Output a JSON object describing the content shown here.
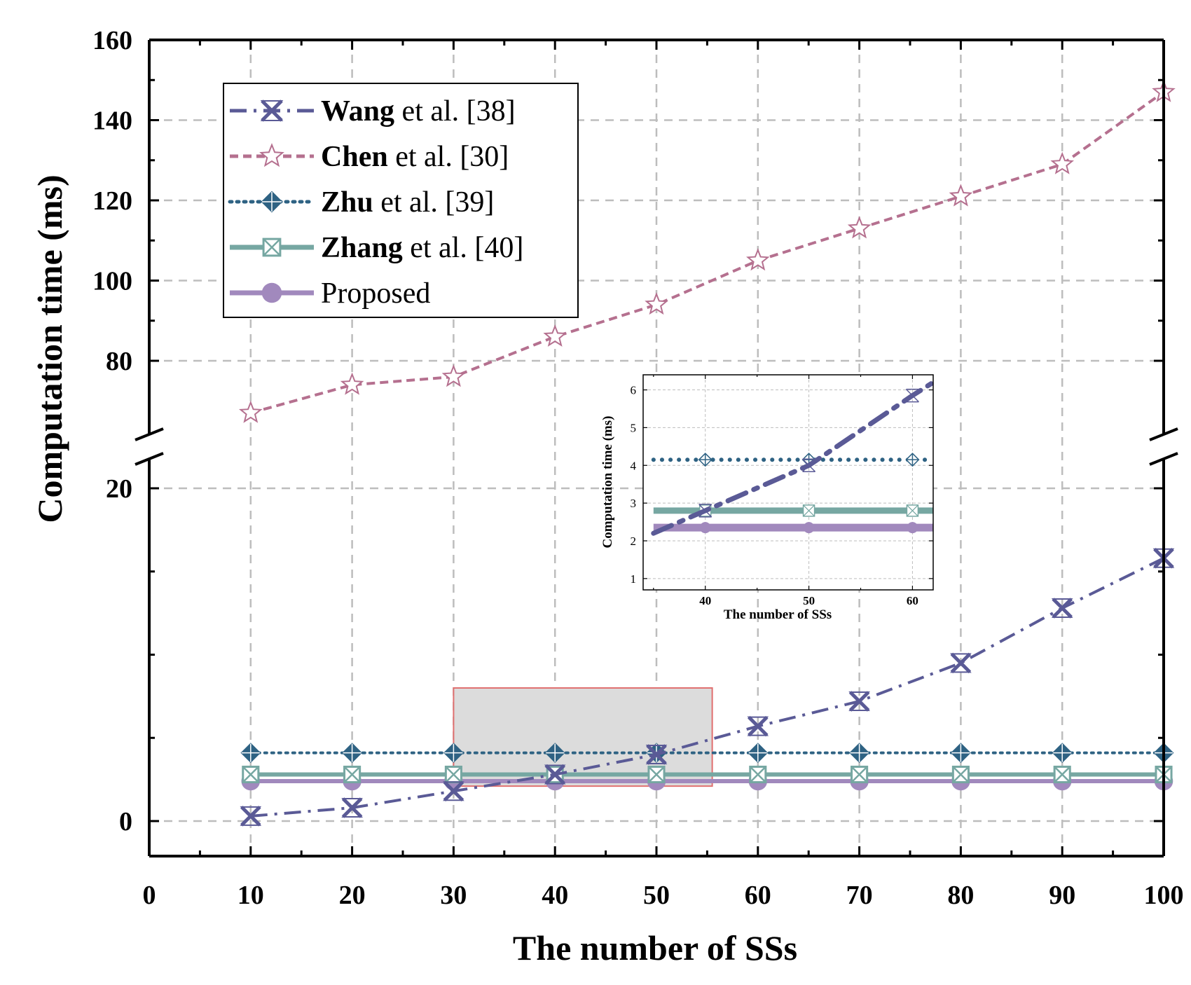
{
  "chart_data": [
    {
      "type": "line",
      "xlabel": "The number of SSs",
      "ylabel": "Computation time (ms)",
      "xlim": [
        0,
        100
      ],
      "xticks": [
        "0",
        "10",
        "20",
        "30",
        "40",
        "50",
        "60",
        "70",
        "80",
        "90",
        "100"
      ],
      "ylim_lower": [
        -2.5,
        20
      ],
      "ylim_upper": [
        65,
        160
      ],
      "yticks": [
        "0",
        "20",
        "80",
        "100",
        "120",
        "140",
        "160"
      ],
      "axis_break": true,
      "grid": true,
      "legend_position": "top-left",
      "x": [
        10,
        20,
        30,
        40,
        50,
        60,
        70,
        80,
        90,
        100
      ],
      "series": [
        {
          "name_bold": "Wang",
          "name_rest": " et al. [38]",
          "color": "#5a5a96",
          "marker": "x-cross",
          "linestyle": "dash-dot",
          "values": [
            0.3,
            0.8,
            1.8,
            2.8,
            4.0,
            5.7,
            7.2,
            9.5,
            12.8,
            15.8
          ]
        },
        {
          "name_bold": "Chen",
          "name_rest": " et al. [30]",
          "color": "#b5708f",
          "marker": "star",
          "linestyle": "dashed",
          "values": [
            67,
            74,
            76,
            86,
            94,
            105,
            113,
            121,
            129,
            147
          ]
        },
        {
          "name_bold": "Zhu",
          "name_rest": " et al. [39]",
          "color": "#2e6283",
          "marker": "diamond-plus",
          "linestyle": "dotted",
          "values": [
            4.1,
            4.1,
            4.1,
            4.1,
            4.1,
            4.1,
            4.1,
            4.1,
            4.1,
            4.1
          ]
        },
        {
          "name_bold": "Zhang",
          "name_rest": " et al. [40]",
          "color": "#76a7a2",
          "marker": "square-x",
          "linestyle": "solid",
          "values": [
            2.8,
            2.8,
            2.8,
            2.8,
            2.8,
            2.8,
            2.8,
            2.8,
            2.8,
            2.8
          ]
        },
        {
          "name_bold": "",
          "name_rest": "Proposed",
          "color": "#a189bd",
          "marker": "circle",
          "linestyle": "solid",
          "values": [
            2.4,
            2.4,
            2.4,
            2.4,
            2.4,
            2.4,
            2.4,
            2.4,
            2.4,
            2.4
          ]
        }
      ],
      "zoom_region": {
        "x": [
          30,
          55.5
        ],
        "y": [
          2.1,
          8.0
        ]
      }
    },
    {
      "type": "line",
      "role": "inset",
      "xlabel": "The number of SSs",
      "ylabel": "Computation time (ms)",
      "xlim": [
        34,
        62
      ],
      "ylim": [
        0.7,
        6.4
      ],
      "xticks": [
        "40",
        "50",
        "60"
      ],
      "yticks": [
        "1",
        "2",
        "3",
        "4",
        "5",
        "6"
      ],
      "grid": true,
      "x": [
        35,
        40,
        50,
        60,
        62
      ],
      "series": [
        {
          "color": "#5a5a96",
          "values": [
            2.2,
            2.8,
            4.0,
            5.85,
            6.2
          ],
          "marker_x": [
            40,
            50,
            60
          ]
        },
        {
          "color": "#2e6283",
          "values": [
            4.15,
            4.15,
            4.15,
            4.15,
            4.15
          ],
          "marker_x": [
            40,
            50,
            60
          ]
        },
        {
          "color": "#76a7a2",
          "values": [
            2.8,
            2.8,
            2.8,
            2.8,
            2.8
          ],
          "marker_x": [
            40,
            50,
            60
          ]
        },
        {
          "color": "#a189bd",
          "values": [
            2.35,
            2.35,
            2.35,
            2.35,
            2.35
          ],
          "marker_x": [
            40,
            50,
            60
          ]
        }
      ]
    }
  ]
}
